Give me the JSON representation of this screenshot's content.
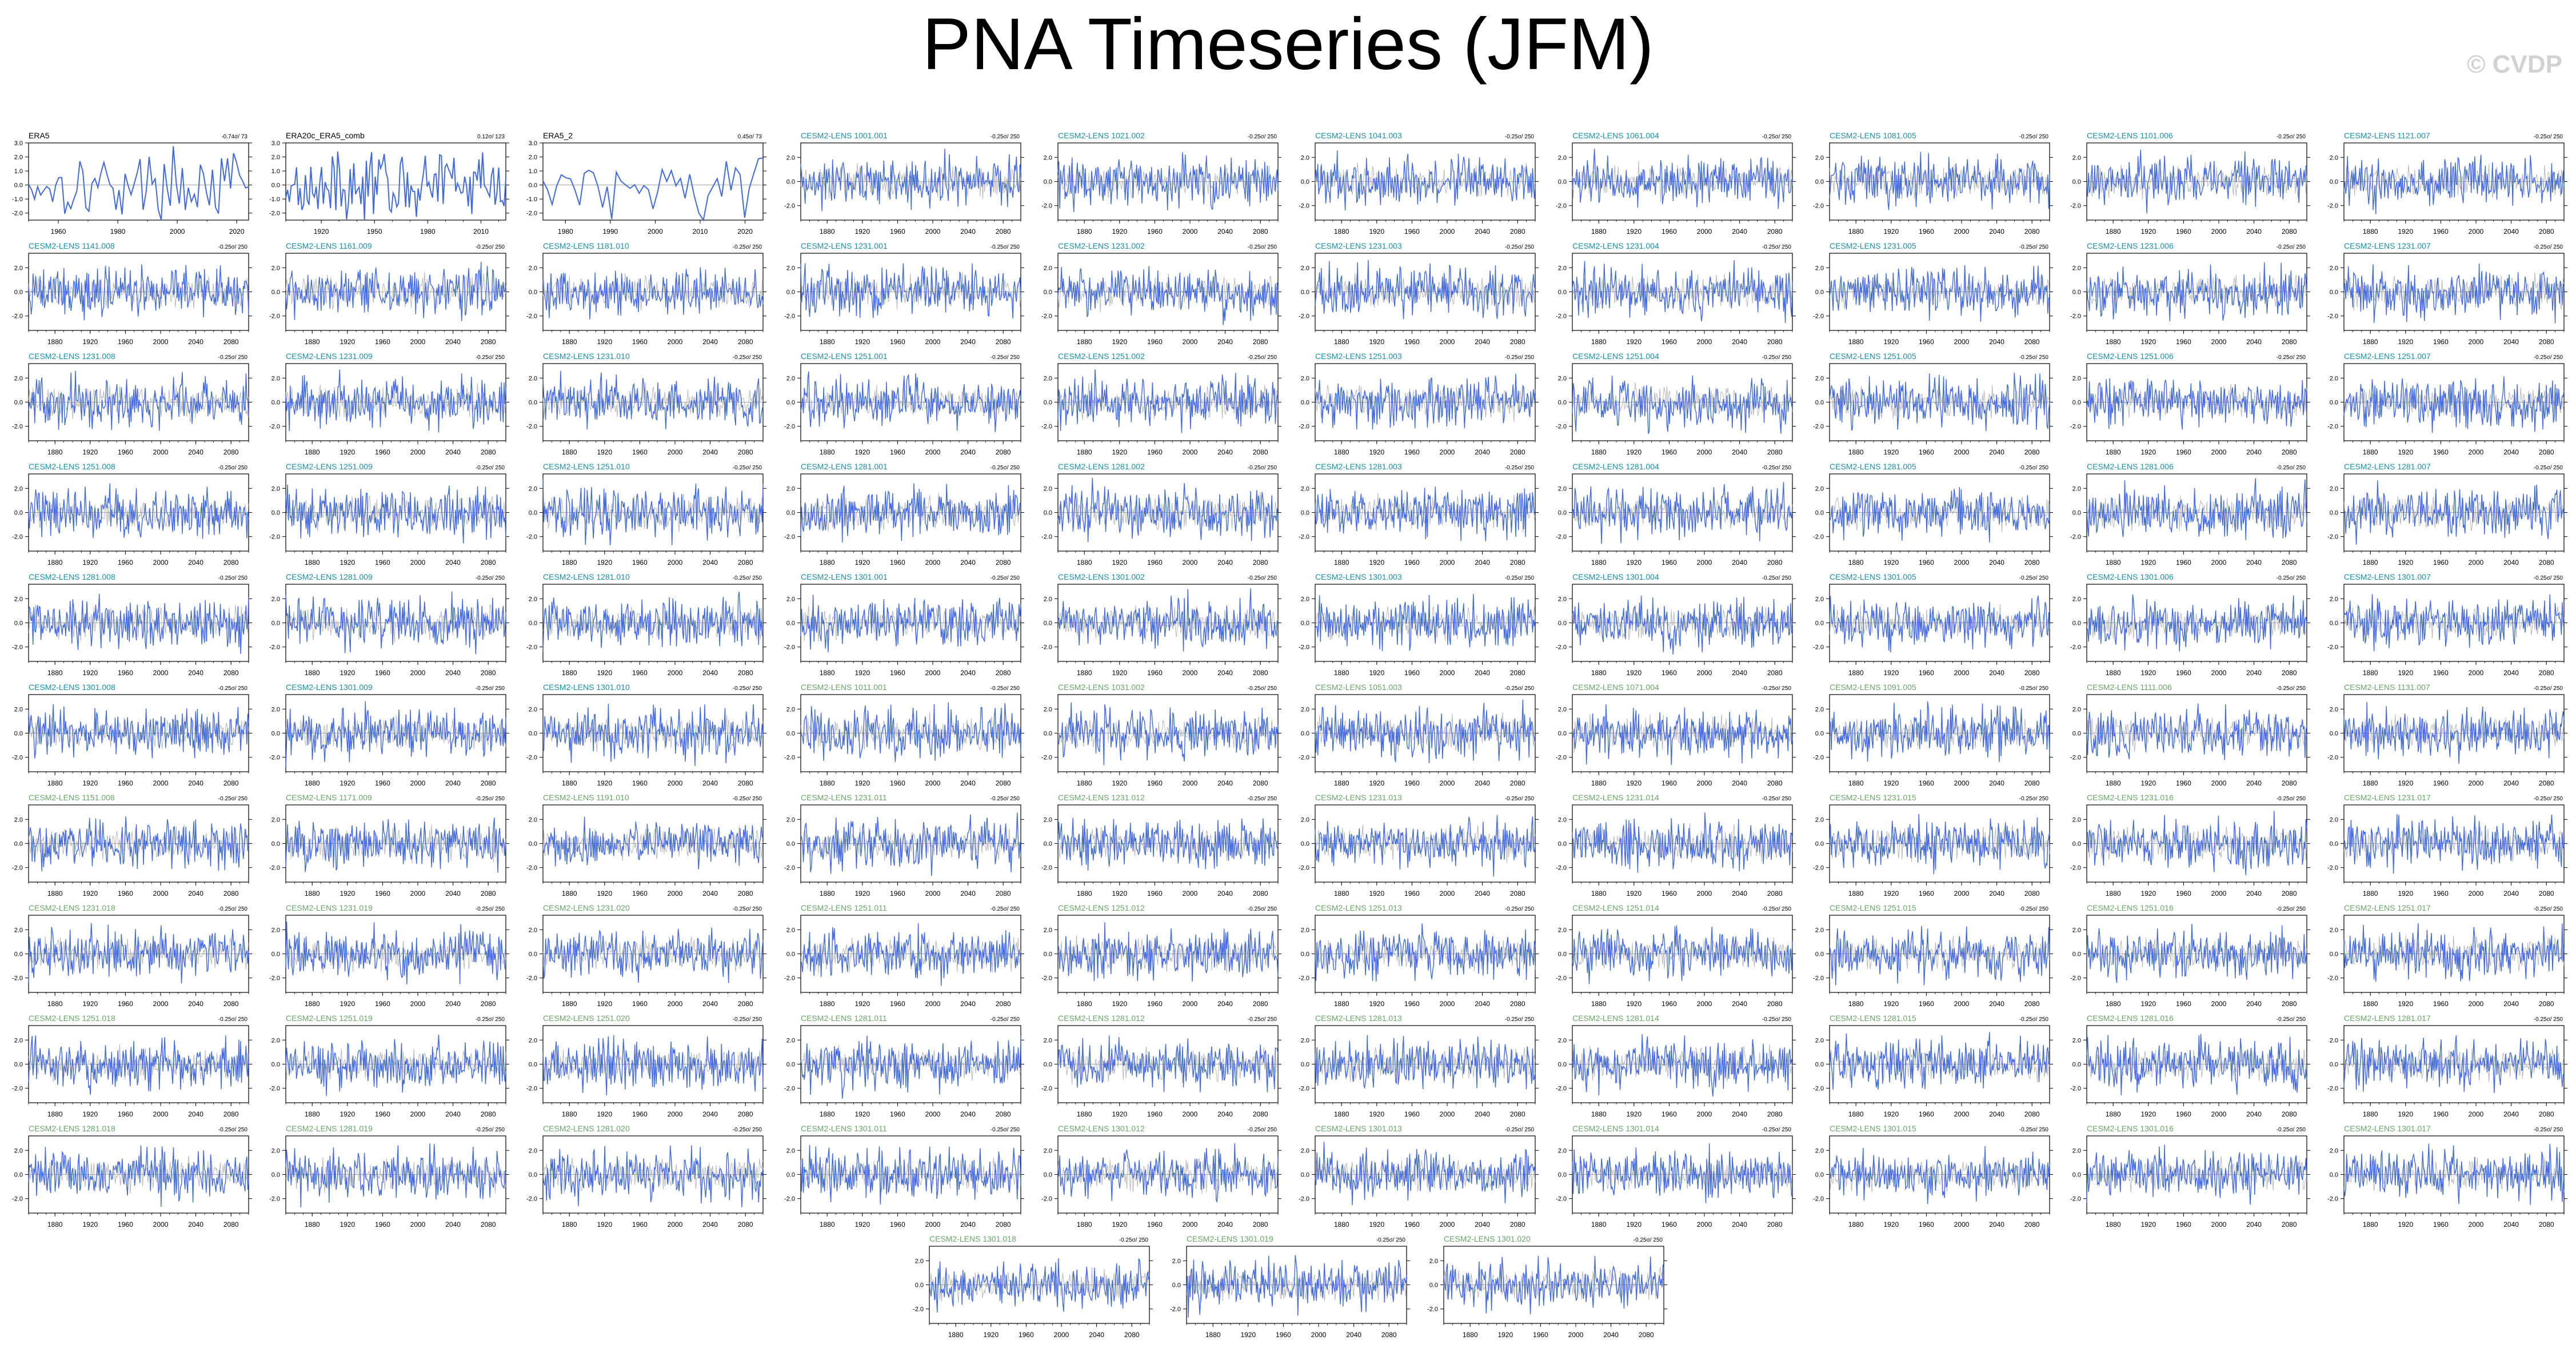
{
  "title": "PNA Timeseries (JFM)",
  "watermark": "© CVDP",
  "chart_data": {
    "type": "line",
    "layout_note_excluded": true,
    "series_color": "#4169e1",
    "colors": {
      "obs_label": "#000000",
      "model_label_a": "#1b8fa8",
      "model_label_b": "#6aa56a",
      "line": "#4169e1",
      "ensemble_gray": "#9a9a9a"
    },
    "panels": [
      {
        "name": "ERA5",
        "trend": "-0.74σ/ 73",
        "xticks": [
          "1960",
          "1980",
          "2000",
          "2020"
        ],
        "xrange": [
          1950,
          2024
        ],
        "yticks": [
          "3.0",
          "2.0",
          "1.0",
          "0.0",
          "-1.0",
          "-2.0"
        ],
        "ylim": [
          -2.5,
          3.0
        ],
        "kind": "obs"
      },
      {
        "name": "ERA20c_ERA5_comb",
        "trend": "0.12σ/ 123",
        "xticks": [
          "1920",
          "1950",
          "1980",
          "2010"
        ],
        "xrange": [
          1900,
          2024
        ],
        "yticks": [
          "3.0",
          "2.0",
          "1.0",
          "0.0",
          "-1.0",
          "-2.0"
        ],
        "ylim": [
          -2.5,
          3.0
        ],
        "kind": "obs"
      },
      {
        "name": "ERA5_2",
        "trend": "0.45σ/ 73",
        "xticks": [
          "1980",
          "1990",
          "2000",
          "2010",
          "2020"
        ],
        "xrange": [
          1975,
          2024
        ],
        "yticks": [
          "3.0",
          "2.0",
          "1.0",
          "0.0",
          "-1.0",
          "-2.0"
        ],
        "ylim": [
          -2.5,
          3.0
        ],
        "kind": "obs"
      },
      {
        "name": "CESM2-LENS 1001.001",
        "trend": "-0.25σ/ 250",
        "kind": "a"
      },
      {
        "name": "CESM2-LENS 1021.002",
        "trend": "-0.25σ/ 250",
        "kind": "a"
      },
      {
        "name": "CESM2-LENS 1041.003",
        "trend": "-0.25σ/ 250",
        "kind": "a"
      },
      {
        "name": "CESM2-LENS 1061.004",
        "trend": "-0.25σ/ 250",
        "kind": "a"
      },
      {
        "name": "CESM2-LENS 1081.005",
        "trend": "-0.25σ/ 250",
        "kind": "a"
      },
      {
        "name": "CESM2-LENS 1101.006",
        "trend": "-0.25σ/ 250",
        "kind": "a"
      },
      {
        "name": "CESM2-LENS 1121.007",
        "trend": "-0.25σ/ 250",
        "kind": "a"
      },
      {
        "name": "CESM2-LENS 1141.008",
        "trend": "-0.25σ/ 250",
        "kind": "a"
      },
      {
        "name": "CESM2-LENS 1161.009",
        "trend": "-0.25σ/ 250",
        "kind": "a"
      },
      {
        "name": "CESM2-LENS 1181.010",
        "trend": "-0.25σ/ 250",
        "kind": "a"
      },
      {
        "name": "CESM2-LENS 1231.001",
        "trend": "-0.25σ/ 250",
        "kind": "a"
      },
      {
        "name": "CESM2-LENS 1231.002",
        "trend": "-0.25σ/ 250",
        "kind": "a"
      },
      {
        "name": "CESM2-LENS 1231.003",
        "trend": "-0.25σ/ 250",
        "kind": "a"
      },
      {
        "name": "CESM2-LENS 1231.004",
        "trend": "-0.25σ/ 250",
        "kind": "a"
      },
      {
        "name": "CESM2-LENS 1231.005",
        "trend": "-0.25σ/ 250",
        "kind": "a"
      },
      {
        "name": "CESM2-LENS 1231.006",
        "trend": "-0.25σ/ 250",
        "kind": "a"
      },
      {
        "name": "CESM2-LENS 1231.007",
        "trend": "-0.25σ/ 250",
        "kind": "a"
      },
      {
        "name": "CESM2-LENS 1231.008",
        "trend": "-0.25σ/ 250",
        "kind": "a"
      },
      {
        "name": "CESM2-LENS 1231.009",
        "trend": "-0.25σ/ 250",
        "kind": "a"
      },
      {
        "name": "CESM2-LENS 1231.010",
        "trend": "-0.25σ/ 250",
        "kind": "a"
      },
      {
        "name": "CESM2-LENS 1251.001",
        "trend": "-0.25σ/ 250",
        "kind": "a"
      },
      {
        "name": "CESM2-LENS 1251.002",
        "trend": "-0.25σ/ 250",
        "kind": "a"
      },
      {
        "name": "CESM2-LENS 1251.003",
        "trend": "-0.25σ/ 250",
        "kind": "a"
      },
      {
        "name": "CESM2-LENS 1251.004",
        "trend": "-0.25σ/ 250",
        "kind": "a"
      },
      {
        "name": "CESM2-LENS 1251.005",
        "trend": "-0.25σ/ 250",
        "kind": "a"
      },
      {
        "name": "CESM2-LENS 1251.006",
        "trend": "-0.25σ/ 250",
        "kind": "a"
      },
      {
        "name": "CESM2-LENS 1251.007",
        "trend": "-0.25σ/ 250",
        "kind": "a"
      },
      {
        "name": "CESM2-LENS 1251.008",
        "trend": "-0.25σ/ 250",
        "kind": "a"
      },
      {
        "name": "CESM2-LENS 1251.009",
        "trend": "-0.25σ/ 250",
        "kind": "a"
      },
      {
        "name": "CESM2-LENS 1251.010",
        "trend": "-0.25σ/ 250",
        "kind": "a"
      },
      {
        "name": "CESM2-LENS 1281.001",
        "trend": "-0.25σ/ 250",
        "kind": "a"
      },
      {
        "name": "CESM2-LENS 1281.002",
        "trend": "-0.25σ/ 250",
        "kind": "a"
      },
      {
        "name": "CESM2-LENS 1281.003",
        "trend": "-0.25σ/ 250",
        "kind": "a"
      },
      {
        "name": "CESM2-LENS 1281.004",
        "trend": "-0.25σ/ 250",
        "kind": "a"
      },
      {
        "name": "CESM2-LENS 1281.005",
        "trend": "-0.25σ/ 250",
        "kind": "a"
      },
      {
        "name": "CESM2-LENS 1281.006",
        "trend": "-0.25σ/ 250",
        "kind": "a"
      },
      {
        "name": "CESM2-LENS 1281.007",
        "trend": "-0.25σ/ 250",
        "kind": "a"
      },
      {
        "name": "CESM2-LENS 1281.008",
        "trend": "-0.25σ/ 250",
        "kind": "a"
      },
      {
        "name": "CESM2-LENS 1281.009",
        "trend": "-0.25σ/ 250",
        "kind": "a"
      },
      {
        "name": "CESM2-LENS 1281.010",
        "trend": "-0.25σ/ 250",
        "kind": "a"
      },
      {
        "name": "CESM2-LENS 1301.001",
        "trend": "-0.25σ/ 250",
        "kind": "a"
      },
      {
        "name": "CESM2-LENS 1301.002",
        "trend": "-0.25σ/ 250",
        "kind": "a"
      },
      {
        "name": "CESM2-LENS 1301.003",
        "trend": "-0.25σ/ 250",
        "kind": "a"
      },
      {
        "name": "CESM2-LENS 1301.004",
        "trend": "-0.25σ/ 250",
        "kind": "a"
      },
      {
        "name": "CESM2-LENS 1301.005",
        "trend": "-0.25σ/ 250",
        "kind": "a"
      },
      {
        "name": "CESM2-LENS 1301.006",
        "trend": "-0.25σ/ 250",
        "kind": "a"
      },
      {
        "name": "CESM2-LENS 1301.007",
        "trend": "-0.25σ/ 250",
        "kind": "a"
      },
      {
        "name": "CESM2-LENS 1301.008",
        "trend": "-0.25σ/ 250",
        "kind": "a"
      },
      {
        "name": "CESM2-LENS 1301.009",
        "trend": "-0.25σ/ 250",
        "kind": "a"
      },
      {
        "name": "CESM2-LENS 1301.010",
        "trend": "-0.25σ/ 250",
        "kind": "a"
      },
      {
        "name": "CESM2-LENS 1011.001",
        "trend": "-0.25σ/ 250",
        "kind": "b"
      },
      {
        "name": "CESM2-LENS 1031.002",
        "trend": "-0.25σ/ 250",
        "kind": "b"
      },
      {
        "name": "CESM2-LENS 1051.003",
        "trend": "-0.25σ/ 250",
        "kind": "b"
      },
      {
        "name": "CESM2-LENS 1071.004",
        "trend": "-0.25σ/ 250",
        "kind": "b"
      },
      {
        "name": "CESM2-LENS 1091.005",
        "trend": "-0.25σ/ 250",
        "kind": "b"
      },
      {
        "name": "CESM2-LENS 1111.006",
        "trend": "-0.25σ/ 250",
        "kind": "b"
      },
      {
        "name": "CESM2-LENS 1131.007",
        "trend": "-0.25σ/ 250",
        "kind": "b"
      },
      {
        "name": "CESM2-LENS 1151.008",
        "trend": "-0.25σ/ 250",
        "kind": "b"
      },
      {
        "name": "CESM2-LENS 1171.009",
        "trend": "-0.25σ/ 250",
        "kind": "b"
      },
      {
        "name": "CESM2-LENS 1191.010",
        "trend": "-0.25σ/ 250",
        "kind": "b"
      },
      {
        "name": "CESM2-LENS 1231.011",
        "trend": "-0.25σ/ 250",
        "kind": "b"
      },
      {
        "name": "CESM2-LENS 1231.012",
        "trend": "-0.25σ/ 250",
        "kind": "b"
      },
      {
        "name": "CESM2-LENS 1231.013",
        "trend": "-0.25σ/ 250",
        "kind": "b"
      },
      {
        "name": "CESM2-LENS 1231.014",
        "trend": "-0.25σ/ 250",
        "kind": "b"
      },
      {
        "name": "CESM2-LENS 1231.015",
        "trend": "-0.25σ/ 250",
        "kind": "b"
      },
      {
        "name": "CESM2-LENS 1231.016",
        "trend": "-0.25σ/ 250",
        "kind": "b"
      },
      {
        "name": "CESM2-LENS 1231.017",
        "trend": "-0.25σ/ 250",
        "kind": "b"
      },
      {
        "name": "CESM2-LENS 1231.018",
        "trend": "-0.25σ/ 250",
        "kind": "b"
      },
      {
        "name": "CESM2-LENS 1231.019",
        "trend": "-0.25σ/ 250",
        "kind": "b"
      },
      {
        "name": "CESM2-LENS 1231.020",
        "trend": "-0.25σ/ 250",
        "kind": "b"
      },
      {
        "name": "CESM2-LENS 1251.011",
        "trend": "-0.25σ/ 250",
        "kind": "b"
      },
      {
        "name": "CESM2-LENS 1251.012",
        "trend": "-0.25σ/ 250",
        "kind": "b"
      },
      {
        "name": "CESM2-LENS 1251.013",
        "trend": "-0.25σ/ 250",
        "kind": "b"
      },
      {
        "name": "CESM2-LENS 1251.014",
        "trend": "-0.25σ/ 250",
        "kind": "b"
      },
      {
        "name": "CESM2-LENS 1251.015",
        "trend": "-0.25σ/ 250",
        "kind": "b"
      },
      {
        "name": "CESM2-LENS 1251.016",
        "trend": "-0.25σ/ 250",
        "kind": "b"
      },
      {
        "name": "CESM2-LENS 1251.017",
        "trend": "-0.25σ/ 250",
        "kind": "b"
      },
      {
        "name": "CESM2-LENS 1251.018",
        "trend": "-0.25σ/ 250",
        "kind": "b"
      },
      {
        "name": "CESM2-LENS 1251.019",
        "trend": "-0.25σ/ 250",
        "kind": "b"
      },
      {
        "name": "CESM2-LENS 1251.020",
        "trend": "-0.25σ/ 250",
        "kind": "b"
      },
      {
        "name": "CESM2-LENS 1281.011",
        "trend": "-0.25σ/ 250",
        "kind": "b"
      },
      {
        "name": "CESM2-LENS 1281.012",
        "trend": "-0.25σ/ 250",
        "kind": "b"
      },
      {
        "name": "CESM2-LENS 1281.013",
        "trend": "-0.25σ/ 250",
        "kind": "b"
      },
      {
        "name": "CESM2-LENS 1281.014",
        "trend": "-0.25σ/ 250",
        "kind": "b"
      },
      {
        "name": "CESM2-LENS 1281.015",
        "trend": "-0.25σ/ 250",
        "kind": "b"
      },
      {
        "name": "CESM2-LENS 1281.016",
        "trend": "-0.25σ/ 250",
        "kind": "b"
      },
      {
        "name": "CESM2-LENS 1281.017",
        "trend": "-0.25σ/ 250",
        "kind": "b"
      },
      {
        "name": "CESM2-LENS 1281.018",
        "trend": "-0.25σ/ 250",
        "kind": "b"
      },
      {
        "name": "CESM2-LENS 1281.019",
        "trend": "-0.25σ/ 250",
        "kind": "b"
      },
      {
        "name": "CESM2-LENS 1281.020",
        "trend": "-0.25σ/ 250",
        "kind": "b"
      },
      {
        "name": "CESM2-LENS 1301.011",
        "trend": "-0.25σ/ 250",
        "kind": "b"
      },
      {
        "name": "CESM2-LENS 1301.012",
        "trend": "-0.25σ/ 250",
        "kind": "b"
      },
      {
        "name": "CESM2-LENS 1301.013",
        "trend": "-0.25σ/ 250",
        "kind": "b"
      },
      {
        "name": "CESM2-LENS 1301.014",
        "trend": "-0.25σ/ 250",
        "kind": "b"
      },
      {
        "name": "CESM2-LENS 1301.015",
        "trend": "-0.25σ/ 250",
        "kind": "b"
      },
      {
        "name": "CESM2-LENS 1301.016",
        "trend": "-0.25σ/ 250",
        "kind": "b"
      },
      {
        "name": "CESM2-LENS 1301.017",
        "trend": "-0.25σ/ 250",
        "kind": "b"
      },
      {
        "name": "CESM2-LENS 1301.018",
        "trend": "-0.25σ/ 250",
        "kind": "b"
      },
      {
        "name": "CESM2-LENS 1301.019",
        "trend": "-0.25σ/ 250",
        "kind": "b"
      },
      {
        "name": "CESM2-LENS 1301.020",
        "trend": "-0.25σ/ 250",
        "kind": "b"
      }
    ],
    "model_axes": {
      "xticks": [
        "1880",
        "1920",
        "1960",
        "2000",
        "2040",
        "2080"
      ],
      "xrange": [
        1850,
        2100
      ],
      "yticks": [
        "2.0",
        "0.0",
        "-2.0"
      ],
      "ylim": [
        -3.2,
        3.2
      ]
    }
  }
}
